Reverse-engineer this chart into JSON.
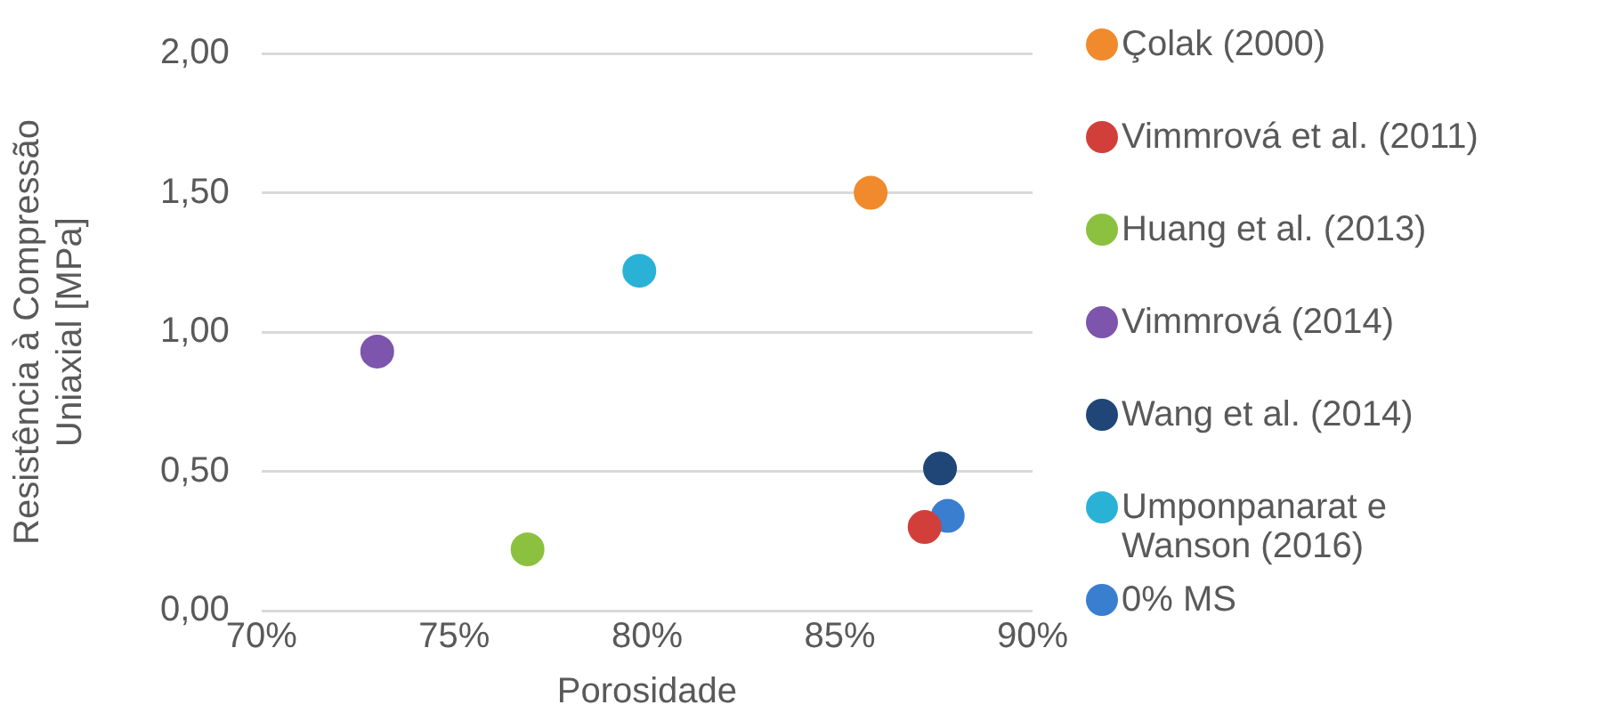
{
  "chart_data": {
    "type": "scatter",
    "xlabel": "Porosidade",
    "ylabel": "Resistência à Compressão Uniaxial [MPa]",
    "xlim": [
      70,
      90
    ],
    "xticks": [
      {
        "value": 70,
        "label": "70%"
      },
      {
        "value": 75,
        "label": "75%"
      },
      {
        "value": 80,
        "label": "80%"
      },
      {
        "value": 85,
        "label": "85%"
      },
      {
        "value": 90,
        "label": "90%"
      }
    ],
    "ylim": [
      0,
      2
    ],
    "yticks": [
      {
        "value": 0,
        "label": "0,00"
      },
      {
        "value": 0.5,
        "label": "0,50"
      },
      {
        "value": 1,
        "label": "1,00"
      },
      {
        "value": 1.5,
        "label": "1,50"
      },
      {
        "value": 2,
        "label": "2,00"
      }
    ],
    "grid": "y",
    "legend": "right",
    "marker": "circle",
    "series": [
      {
        "name": "Çolak (2000)",
        "color": "#f08a2c",
        "x": [
          85.8
        ],
        "values": [
          1.5
        ]
      },
      {
        "name": "Vimmrová et al. (2011)",
        "color": "#d23f3b",
        "x": [
          87.2
        ],
        "values": [
          0.3
        ]
      },
      {
        "name": "Huang et al. (2013)",
        "color": "#8cc13f",
        "x": [
          76.9
        ],
        "values": [
          0.22
        ]
      },
      {
        "name": "Vimmrová (2014)",
        "color": "#7d55ac",
        "x": [
          73.0
        ],
        "values": [
          0.93
        ]
      },
      {
        "name": "Wang et al. (2014)",
        "color": "#1f4677",
        "x": [
          87.6
        ],
        "values": [
          0.51
        ]
      },
      {
        "name": "Umponpanarat e Wanson (2016)",
        "color": "#2ab2d6",
        "x": [
          79.8
        ],
        "values": [
          1.22
        ]
      },
      {
        "name": "0% MS",
        "color": "#3a7ed0",
        "x": [
          87.8
        ],
        "values": [
          0.34
        ]
      }
    ]
  }
}
